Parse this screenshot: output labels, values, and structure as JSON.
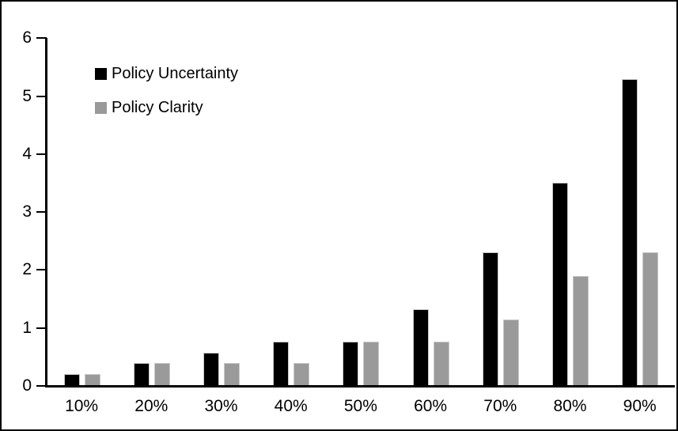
{
  "chart_data": {
    "type": "bar",
    "title": "",
    "xlabel": "",
    "ylabel": "",
    "categories": [
      "10%",
      "20%",
      "30%",
      "40%",
      "50%",
      "60%",
      "70%",
      "80%",
      "90%"
    ],
    "series": [
      {
        "name": "Policy Uncertainty",
        "color": "#000000",
        "values": [
          0.2,
          0.39,
          0.57,
          0.76,
          0.77,
          1.33,
          2.3,
          3.5,
          5.3
        ]
      },
      {
        "name": "Policy Clarity",
        "color": "#9a9a9a",
        "values": [
          0.2,
          0.39,
          0.39,
          0.39,
          0.77,
          0.77,
          1.15,
          1.9,
          2.3
        ]
      }
    ],
    "ylim": [
      0,
      6
    ],
    "yticks": [
      0,
      1,
      2,
      3,
      4,
      5,
      6
    ],
    "grid": false,
    "legend_position": "upper-left-inside",
    "axis_color": "#000000",
    "background_color": "#ffffff",
    "frame_color": "#000000"
  }
}
